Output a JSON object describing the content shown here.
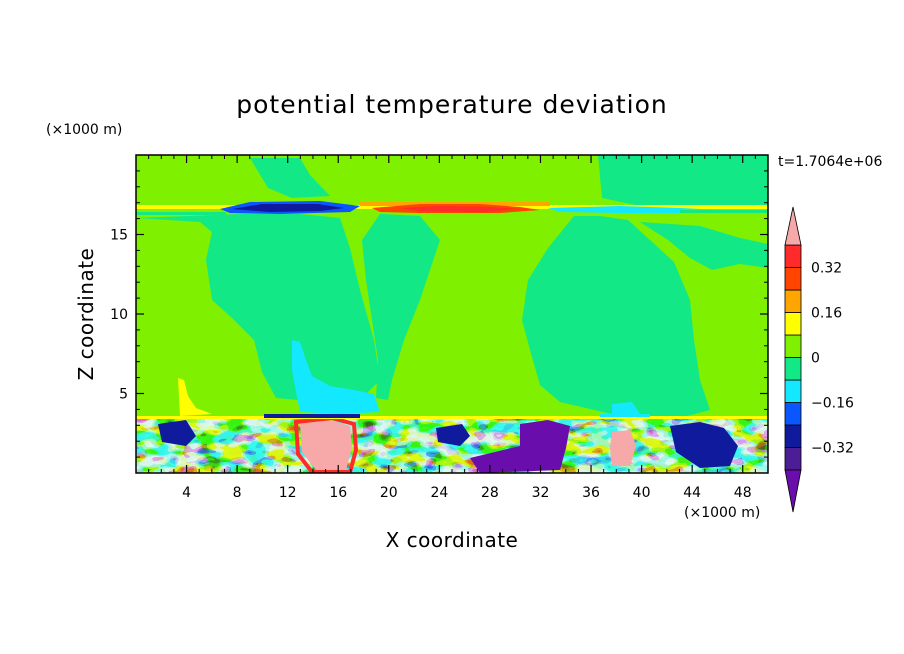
{
  "chart_data": {
    "type": "heatmap",
    "title": "potential temperature deviation",
    "xlabel": "X coordinate",
    "ylabel": "Z coordinate",
    "x_unit": "(×1000 m)",
    "y_unit": "(×1000 m)",
    "time_label": "t=1.7064e+06",
    "xlim": [
      0,
      50
    ],
    "ylim": [
      0,
      20
    ],
    "x_ticks": [
      4,
      8,
      12,
      16,
      20,
      24,
      28,
      32,
      36,
      40,
      44,
      48
    ],
    "y_ticks": [
      5,
      10,
      15
    ],
    "grid": false,
    "colorbar": {
      "levels": [
        -0.4,
        -0.32,
        -0.24,
        -0.16,
        -0.08,
        0,
        0.08,
        0.16,
        0.24,
        0.32,
        0.4
      ],
      "colors": [
        "#6a0dad",
        "#4b1e96",
        "#0f1a9c",
        "#0a56ff",
        "#13e8ff",
        "#13e887",
        "#7ff000",
        "#ffff00",
        "#ffa500",
        "#ff4500",
        "#ff2a2a",
        "#f7a8a8"
      ],
      "tick_labels": [
        "0.32",
        "0.16",
        "0",
        "-0.16",
        "-0.32"
      ],
      "tick_values": [
        0.32,
        0.16,
        0,
        -0.16,
        -0.32
      ],
      "under_color": "#6a0dad",
      "over_color": "#f7a8a8"
    },
    "regions": {
      "upper_band_z": [
        16.2,
        17.2
      ],
      "boundary_layer_top_z": 3.6,
      "background_value": 0.04
    }
  }
}
